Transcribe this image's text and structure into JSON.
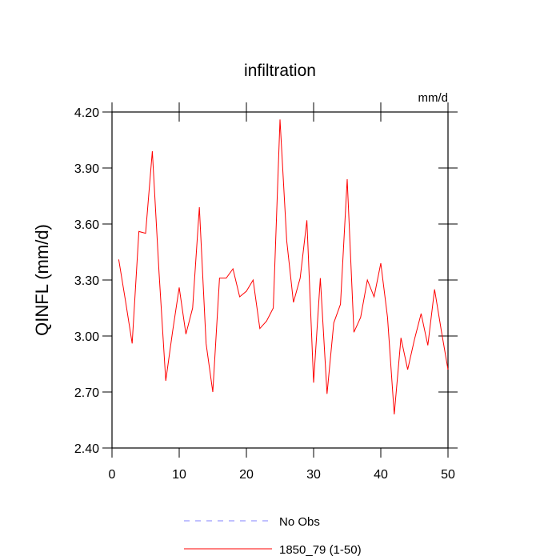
{
  "chart_data": {
    "type": "line",
    "title": "infiltration",
    "units": "mm/d",
    "y_label": "QINFL  (mm/d)",
    "x": [
      1,
      2,
      3,
      4,
      5,
      6,
      7,
      8,
      9,
      10,
      11,
      12,
      13,
      14,
      15,
      16,
      17,
      18,
      19,
      20,
      21,
      22,
      23,
      24,
      25,
      26,
      27,
      28,
      29,
      30,
      31,
      32,
      33,
      34,
      35,
      36,
      37,
      38,
      39,
      40,
      41,
      42,
      43,
      44,
      45,
      46,
      47,
      48,
      49,
      50
    ],
    "series": [
      {
        "name": "1850_79 (1-50)",
        "color": "#ff0000",
        "values": [
          3.41,
          3.19,
          2.96,
          3.56,
          3.55,
          3.99,
          3.34,
          2.76,
          3.02,
          3.26,
          3.01,
          3.15,
          3.69,
          2.96,
          2.7,
          3.31,
          3.31,
          3.36,
          3.21,
          3.24,
          3.3,
          3.04,
          3.08,
          3.15,
          4.16,
          3.51,
          3.18,
          3.31,
          3.62,
          2.75,
          3.31,
          2.69,
          3.07,
          3.17,
          3.84,
          3.02,
          3.1,
          3.3,
          3.21,
          3.39,
          3.1,
          2.58,
          2.99,
          2.82,
          2.98,
          3.12,
          2.95,
          3.25,
          3.03,
          2.82
        ]
      }
    ],
    "extra_legend": [
      {
        "name": "No Obs",
        "color": "#8080ff",
        "dash": "7,7"
      }
    ],
    "xlim": [
      0,
      50
    ],
    "xticks": [
      0,
      10,
      20,
      30,
      40,
      50
    ],
    "ylim": [
      2.4,
      4.2
    ],
    "yticks": [
      {
        "value": 2.4,
        "label": "2.40"
      },
      {
        "value": 2.7,
        "label": "2.70"
      },
      {
        "value": 3.0,
        "label": "3.00"
      },
      {
        "value": 3.3,
        "label": "3.30"
      },
      {
        "value": 3.6,
        "label": "3.60"
      },
      {
        "value": 3.9,
        "label": "3.90"
      },
      {
        "value": 4.2,
        "label": "4.20"
      }
    ]
  }
}
